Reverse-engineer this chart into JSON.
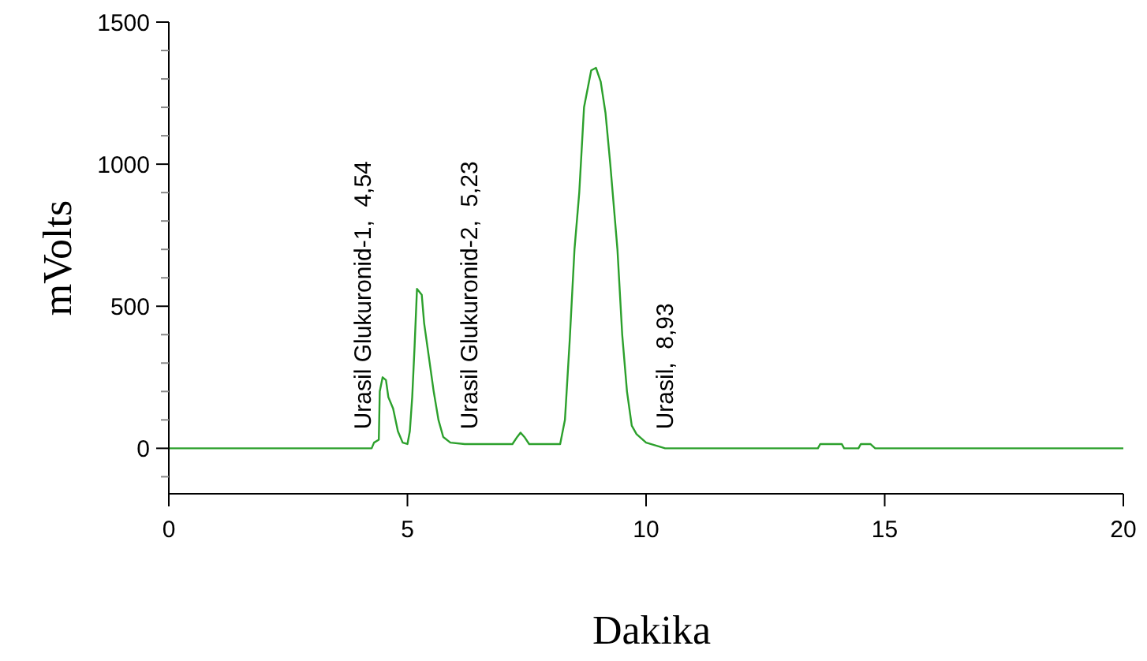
{
  "chart_data": {
    "type": "line",
    "xlabel": "Dakika",
    "ylabel": "mVolts",
    "x": [
      0,
      4.25,
      4.3,
      4.4,
      4.42,
      4.48,
      4.55,
      4.6,
      4.7,
      4.8,
      4.9,
      5.0,
      5.05,
      5.1,
      5.15,
      5.2,
      5.3,
      5.35,
      5.45,
      5.55,
      5.65,
      5.75,
      5.9,
      6.2,
      7.2,
      7.3,
      7.37,
      7.45,
      7.55,
      8.2,
      8.3,
      8.4,
      8.5,
      8.6,
      8.7,
      8.85,
      8.95,
      9.05,
      9.15,
      9.25,
      9.4,
      9.5,
      9.6,
      9.7,
      9.8,
      10.0,
      10.4,
      13.6,
      13.65,
      14.1,
      14.15,
      14.45,
      14.5,
      14.7,
      14.8,
      20
    ],
    "series": [
      {
        "color": "#2ca02c",
        "values": [
          0,
          0,
          20,
          30,
          200,
          250,
          240,
          180,
          140,
          60,
          20,
          15,
          60,
          180,
          360,
          561,
          540,
          440,
          320,
          200,
          100,
          40,
          20,
          15,
          15,
          40,
          55,
          40,
          15,
          15,
          100,
          380,
          700,
          900,
          1200,
          1330,
          1339,
          1290,
          1180,
          1000,
          700,
          400,
          200,
          80,
          50,
          20,
          0,
          0,
          15,
          15,
          0,
          0,
          15,
          15,
          0,
          0
        ]
      }
    ],
    "xlim": [
      0,
      20
    ],
    "xticks": [
      0,
      5,
      10,
      15,
      20
    ],
    "ylim": [
      -160,
      1500
    ],
    "yticks": [
      {
        "value": -100,
        "label": null
      },
      0,
      {
        "value": 100,
        "label": null
      },
      {
        "value": 200,
        "label": null
      },
      {
        "value": 300,
        "label": null
      },
      {
        "value": 400,
        "label": null
      },
      500,
      {
        "value": 600,
        "label": null
      },
      {
        "value": 700,
        "label": null
      },
      {
        "value": 800,
        "label": null
      },
      {
        "value": 900,
        "label": null
      },
      1000,
      {
        "value": 1100,
        "label": null
      },
      {
        "value": 1200,
        "label": null
      },
      {
        "value": 1300,
        "label": null
      },
      {
        "value": 1400,
        "label": null
      },
      1500
    ],
    "annotations": [
      "Urasil Glukuronid-1,  4,54",
      "Urasil Glukuronid-2,  5,23",
      "Urasil,  8,93"
    ],
    "marker": "none",
    "line_style": "solid"
  }
}
